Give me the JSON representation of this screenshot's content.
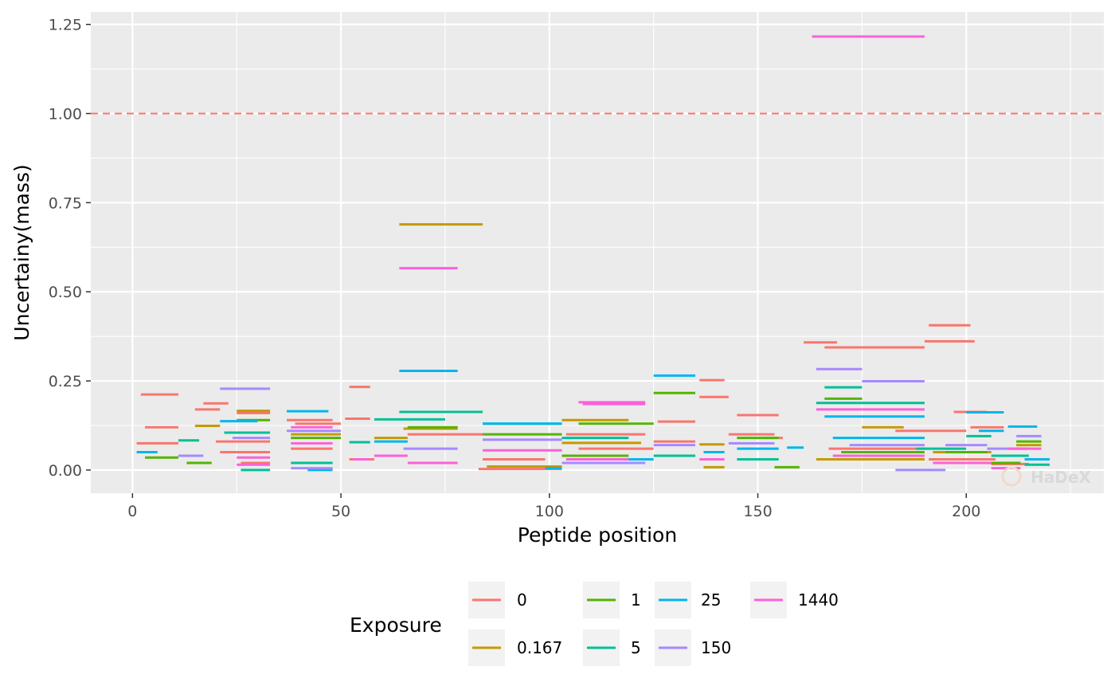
{
  "chart_data": {
    "type": "line",
    "xlabel": "Peptide position",
    "ylabel": "Uncertainy(mass)",
    "xlim": [
      -10,
      233
    ],
    "ylim": [
      -0.065,
      1.285
    ],
    "x_ticks": [
      0,
      50,
      100,
      150,
      200
    ],
    "x_tick_labels": [
      "0",
      "50",
      "100",
      "150",
      "200"
    ],
    "y_ticks": [
      0,
      0.25,
      0.5,
      0.75,
      1.0,
      1.25
    ],
    "y_tick_labels": [
      "0.00",
      "0.25",
      "0.50",
      "0.75",
      "1.00",
      "1.25"
    ],
    "grid": true,
    "reference_line": {
      "y": 1.0,
      "style": "dashed",
      "color": "#F8766D"
    },
    "legend": {
      "title": "Exposure",
      "placement": "bottom",
      "entries": [
        {
          "label": "0",
          "color": "#F8766D"
        },
        {
          "label": "0.167",
          "color": "#C49A00"
        },
        {
          "label": "1",
          "color": "#53B400"
        },
        {
          "label": "5",
          "color": "#00C094"
        },
        {
          "label": "25",
          "color": "#00B6EB"
        },
        {
          "label": "150",
          "color": "#A58AFF"
        },
        {
          "label": "1440",
          "color": "#FB61D7"
        }
      ]
    },
    "series": [
      {
        "name": "0",
        "segments": [
          [
            2,
            11,
            0.212
          ],
          [
            3,
            11,
            0.12
          ],
          [
            15,
            21,
            0.17
          ],
          [
            17,
            23,
            0.187
          ],
          [
            1,
            11,
            0.075
          ],
          [
            25,
            33,
            0.16
          ],
          [
            37,
            48,
            0.14
          ],
          [
            39,
            50,
            0.13
          ],
          [
            52,
            57,
            0.233
          ],
          [
            51,
            57,
            0.144
          ],
          [
            38,
            48,
            0.06
          ],
          [
            52,
            58,
            0.03
          ],
          [
            66,
            84,
            0.1
          ],
          [
            83,
            103,
            0.003
          ],
          [
            84,
            99,
            0.03
          ],
          [
            104,
            123,
            0.1
          ],
          [
            107,
            125,
            0.06
          ],
          [
            126,
            135,
            0.136
          ],
          [
            125,
            135,
            0.08
          ],
          [
            136,
            142,
            0.252
          ],
          [
            136,
            143,
            0.205
          ],
          [
            145,
            155,
            0.154
          ],
          [
            143,
            154,
            0.1
          ],
          [
            151,
            156,
            0.09
          ],
          [
            161,
            169,
            0.358
          ],
          [
            166,
            190,
            0.344
          ],
          [
            183,
            200,
            0.11
          ],
          [
            191,
            201,
            0.406
          ],
          [
            190,
            202,
            0.361
          ],
          [
            197,
            205,
            0.163
          ],
          [
            201,
            209,
            0.12
          ],
          [
            167,
            190,
            0.06
          ],
          [
            191,
            207,
            0.03
          ],
          [
            206,
            215,
            0.017
          ],
          [
            20,
            33,
            0.08
          ],
          [
            21,
            33,
            0.05
          ],
          [
            26,
            33,
            0.02
          ]
        ]
      },
      {
        "name": "0.167",
        "segments": [
          [
            64,
            84,
            0.689
          ],
          [
            15,
            21,
            0.124
          ],
          [
            25,
            33,
            0.166
          ],
          [
            38,
            50,
            0.1
          ],
          [
            58,
            66,
            0.09
          ],
          [
            65,
            78,
            0.116
          ],
          [
            103,
            119,
            0.14
          ],
          [
            103,
            122,
            0.076
          ],
          [
            136,
            142,
            0.072
          ],
          [
            137,
            142,
            0.008
          ],
          [
            164,
            190,
            0.03
          ],
          [
            175,
            185,
            0.12
          ],
          [
            192,
            206,
            0.05
          ],
          [
            212,
            218,
            0.07
          ],
          [
            85,
            103,
            0.01
          ]
        ]
      },
      {
        "name": "1",
        "segments": [
          [
            3,
            11,
            0.035
          ],
          [
            13,
            19,
            0.02
          ],
          [
            25,
            33,
            0.14
          ],
          [
            38,
            50,
            0.09
          ],
          [
            66,
            78,
            0.12
          ],
          [
            84,
            103,
            0.1
          ],
          [
            107,
            125,
            0.13
          ],
          [
            125,
            135,
            0.216
          ],
          [
            145,
            155,
            0.09
          ],
          [
            154,
            160,
            0.008
          ],
          [
            166,
            175,
            0.2
          ],
          [
            170,
            190,
            0.05
          ],
          [
            195,
            205,
            0.05
          ],
          [
            205,
            213,
            0.02
          ],
          [
            212,
            218,
            0.08
          ],
          [
            103,
            119,
            0.04
          ]
        ]
      },
      {
        "name": "5",
        "segments": [
          [
            11,
            16,
            0.083
          ],
          [
            22,
            33,
            0.105
          ],
          [
            26,
            33,
            0.0
          ],
          [
            38,
            48,
            0.02
          ],
          [
            52,
            57,
            0.078
          ],
          [
            58,
            75,
            0.142
          ],
          [
            64,
            84,
            0.163
          ],
          [
            84,
            103,
            0.13
          ],
          [
            103,
            119,
            0.09
          ],
          [
            125,
            135,
            0.04
          ],
          [
            145,
            155,
            0.03
          ],
          [
            164,
            190,
            0.188
          ],
          [
            166,
            175,
            0.232
          ],
          [
            188,
            200,
            0.06
          ],
          [
            200,
            206,
            0.095
          ],
          [
            206,
            215,
            0.04
          ],
          [
            214,
            220,
            0.015
          ]
        ]
      },
      {
        "name": "25",
        "segments": [
          [
            1,
            6,
            0.05
          ],
          [
            21,
            30,
            0.137
          ],
          [
            37,
            47,
            0.165
          ],
          [
            42,
            48,
            0.0
          ],
          [
            58,
            66,
            0.08
          ],
          [
            64,
            78,
            0.278
          ],
          [
            84,
            103,
            0.13
          ],
          [
            99,
            103,
            0.005
          ],
          [
            125,
            135,
            0.265
          ],
          [
            137,
            142,
            0.05
          ],
          [
            145,
            155,
            0.06
          ],
          [
            157,
            161,
            0.063
          ],
          [
            166,
            190,
            0.15
          ],
          [
            168,
            190,
            0.09
          ],
          [
            200,
            209,
            0.162
          ],
          [
            203,
            209,
            0.11
          ],
          [
            210,
            217,
            0.122
          ],
          [
            214,
            220,
            0.03
          ],
          [
            115,
            125,
            0.03
          ]
        ]
      },
      {
        "name": "150",
        "segments": [
          [
            11,
            17,
            0.04
          ],
          [
            21,
            33,
            0.228
          ],
          [
            24,
            33,
            0.09
          ],
          [
            37,
            50,
            0.11
          ],
          [
            38,
            48,
            0.005
          ],
          [
            65,
            78,
            0.06
          ],
          [
            84,
            103,
            0.085
          ],
          [
            103,
            123,
            0.02
          ],
          [
            125,
            135,
            0.07
          ],
          [
            143,
            154,
            0.075
          ],
          [
            164,
            175,
            0.283
          ],
          [
            175,
            190,
            0.249
          ],
          [
            172,
            190,
            0.07
          ],
          [
            183,
            195,
            0.0
          ],
          [
            195,
            205,
            0.07
          ],
          [
            205,
            215,
            0.06
          ],
          [
            212,
            218,
            0.095
          ]
        ]
      },
      {
        "name": "1440",
        "segments": [
          [
            163,
            190,
            1.216
          ],
          [
            64,
            78,
            0.566
          ],
          [
            107,
            123,
            0.19
          ],
          [
            108,
            123,
            0.185
          ],
          [
            25,
            33,
            0.035
          ],
          [
            25,
            33,
            0.015
          ],
          [
            38,
            48,
            0.12
          ],
          [
            38,
            48,
            0.075
          ],
          [
            58,
            66,
            0.04
          ],
          [
            66,
            78,
            0.02
          ],
          [
            84,
            103,
            0.055
          ],
          [
            104,
            119,
            0.03
          ],
          [
            136,
            142,
            0.03
          ],
          [
            164,
            175,
            0.17
          ],
          [
            175,
            190,
            0.17
          ],
          [
            168,
            190,
            0.04
          ],
          [
            192,
            206,
            0.02
          ],
          [
            206,
            213,
            0.005
          ],
          [
            210,
            218,
            0.06
          ],
          [
            53,
            57,
            0.03
          ]
        ]
      }
    ]
  },
  "watermark": {
    "text": "HaDeX"
  }
}
